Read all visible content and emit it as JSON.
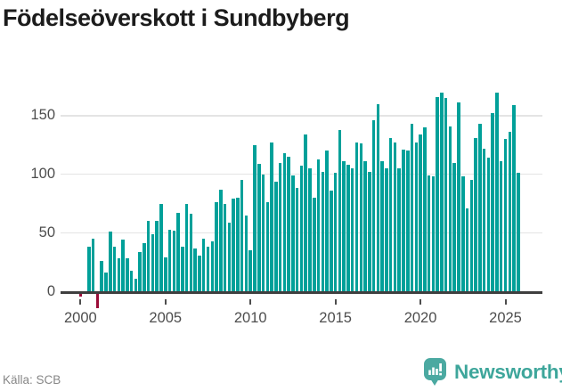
{
  "title": "Födelseöverskott i Sundbyberg",
  "source": {
    "label": "Källa: SCB"
  },
  "branding": {
    "wordmark": "Newsworthy",
    "icon": "newsworthy-chart-bubble-icon"
  },
  "colors": {
    "positive_bar": "#00A099",
    "negative_bar": "#9B0C38",
    "axis_line": "#3f3f3f",
    "gridline": "#e4e4e4",
    "axis_text": "#4d4d4d",
    "title_text": "#1c1c1c",
    "source_text": "#878787",
    "brand_teal": "#3EA69B"
  },
  "chart_data": {
    "type": "bar",
    "title": "Födelseöverskott i Sundbyberg",
    "frequency": "quarterly",
    "start_period": "2000-Q1",
    "end_period": "2025-Q4",
    "xlabel": "",
    "ylabel": "",
    "ylim": [
      -20,
      178
    ],
    "grid": "horizontal",
    "y_ticks": [
      {
        "value": 0,
        "label": "0"
      },
      {
        "value": 50,
        "label": "50"
      },
      {
        "value": 100,
        "label": "100"
      },
      {
        "value": 150,
        "label": "150"
      }
    ],
    "x_ticks": [
      {
        "year": 2000,
        "label": "2000"
      },
      {
        "year": 2005,
        "label": "2005"
      },
      {
        "year": 2010,
        "label": "2010"
      },
      {
        "year": 2015,
        "label": "2015"
      },
      {
        "year": 2020,
        "label": "2020"
      },
      {
        "year": 2025,
        "label": "2025"
      }
    ],
    "values": [
      -2,
      0,
      38,
      45,
      -12,
      26,
      16,
      51,
      38,
      28,
      44,
      28,
      18,
      11,
      34,
      41,
      60,
      49,
      60,
      75,
      29,
      53,
      52,
      67,
      38,
      75,
      66,
      37,
      31,
      45,
      38,
      43,
      76,
      87,
      75,
      59,
      79,
      80,
      95,
      65,
      35,
      125,
      109,
      100,
      76,
      127,
      94,
      110,
      118,
      115,
      99,
      88,
      107,
      134,
      105,
      80,
      113,
      102,
      120,
      86,
      101,
      138,
      111,
      108,
      105,
      127,
      126,
      111,
      102,
      146,
      160,
      111,
      105,
      131,
      127,
      105,
      121,
      120,
      143,
      127,
      134,
      140,
      99,
      98,
      166,
      170,
      165,
      141,
      110,
      161,
      98,
      71,
      95,
      131,
      143,
      122,
      114,
      152,
      170,
      111,
      130,
      136,
      159,
      101
    ]
  }
}
